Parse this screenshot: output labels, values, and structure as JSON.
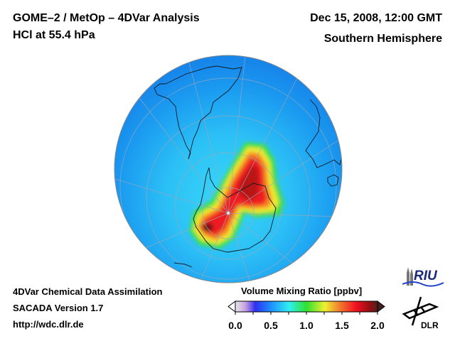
{
  "header": {
    "title": "GOME–2 / MetOp – 4DVar Analysis",
    "subtitle": "HCl at 55.4 hPa",
    "date": "Dec 15, 2008, 12:00 GMT",
    "region": "Southern Hemisphere"
  },
  "footer": {
    "line1": "4DVar Chemical Data Assimilation",
    "line2": "SACADA Version 1.7",
    "url": "http://wdc.dlr.de"
  },
  "map": {
    "projection": "orthographic, south polar view",
    "field": "HCl volume mixing ratio",
    "background_level_ppbv": 0.6,
    "max_level_ppbv": 2.0,
    "features": [
      "South America",
      "Antarctica",
      "Africa",
      "Australia"
    ]
  },
  "colorbar": {
    "title": "Volume Mixing Ratio [ppbv]",
    "ticks": [
      "0.0",
      "0.5",
      "1.0",
      "1.5",
      "2.0"
    ],
    "min": 0.0,
    "max": 2.0,
    "stops": [
      "#e8e8e8",
      "#c8a0e0",
      "#3030f0",
      "#1e90ff",
      "#30f0f0",
      "#30e030",
      "#f0f030",
      "#f08030",
      "#f01020",
      "#901010",
      "#502020"
    ]
  },
  "logos": {
    "riu": "RIU",
    "dlr": "DLR"
  }
}
